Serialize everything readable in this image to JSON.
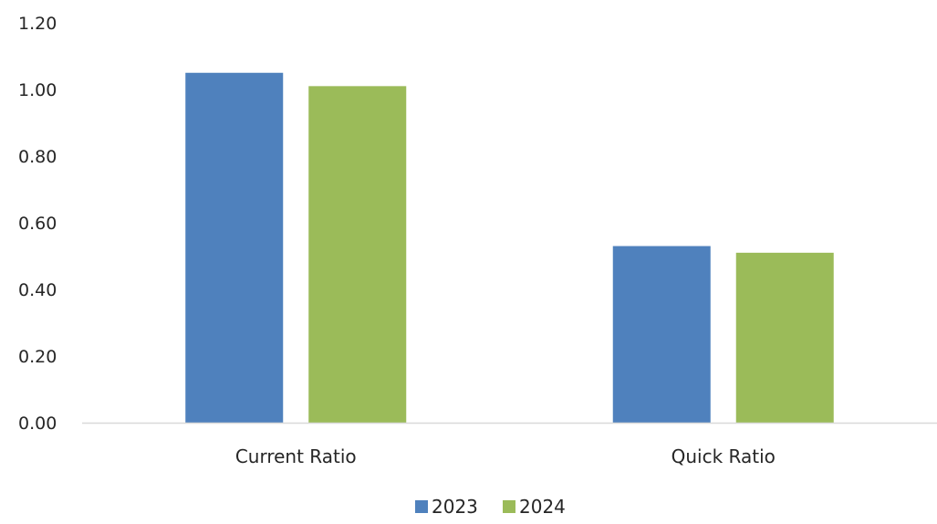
{
  "chart_data": {
    "type": "bar",
    "categories": [
      "Current Ratio",
      "Quick Ratio"
    ],
    "series": [
      {
        "name": "2023",
        "values": [
          1.05,
          0.53
        ],
        "color": "#4F81BD"
      },
      {
        "name": "2024",
        "values": [
          1.01,
          0.51
        ],
        "color": "#9BBB59"
      }
    ],
    "ylim": [
      0,
      1.2
    ],
    "yticks": [
      "0.00",
      "0.20",
      "0.40",
      "0.60",
      "0.80",
      "1.00",
      "1.20"
    ],
    "grid": false,
    "legend_position": "bottom",
    "axis_color": "#D9D9D9"
  }
}
